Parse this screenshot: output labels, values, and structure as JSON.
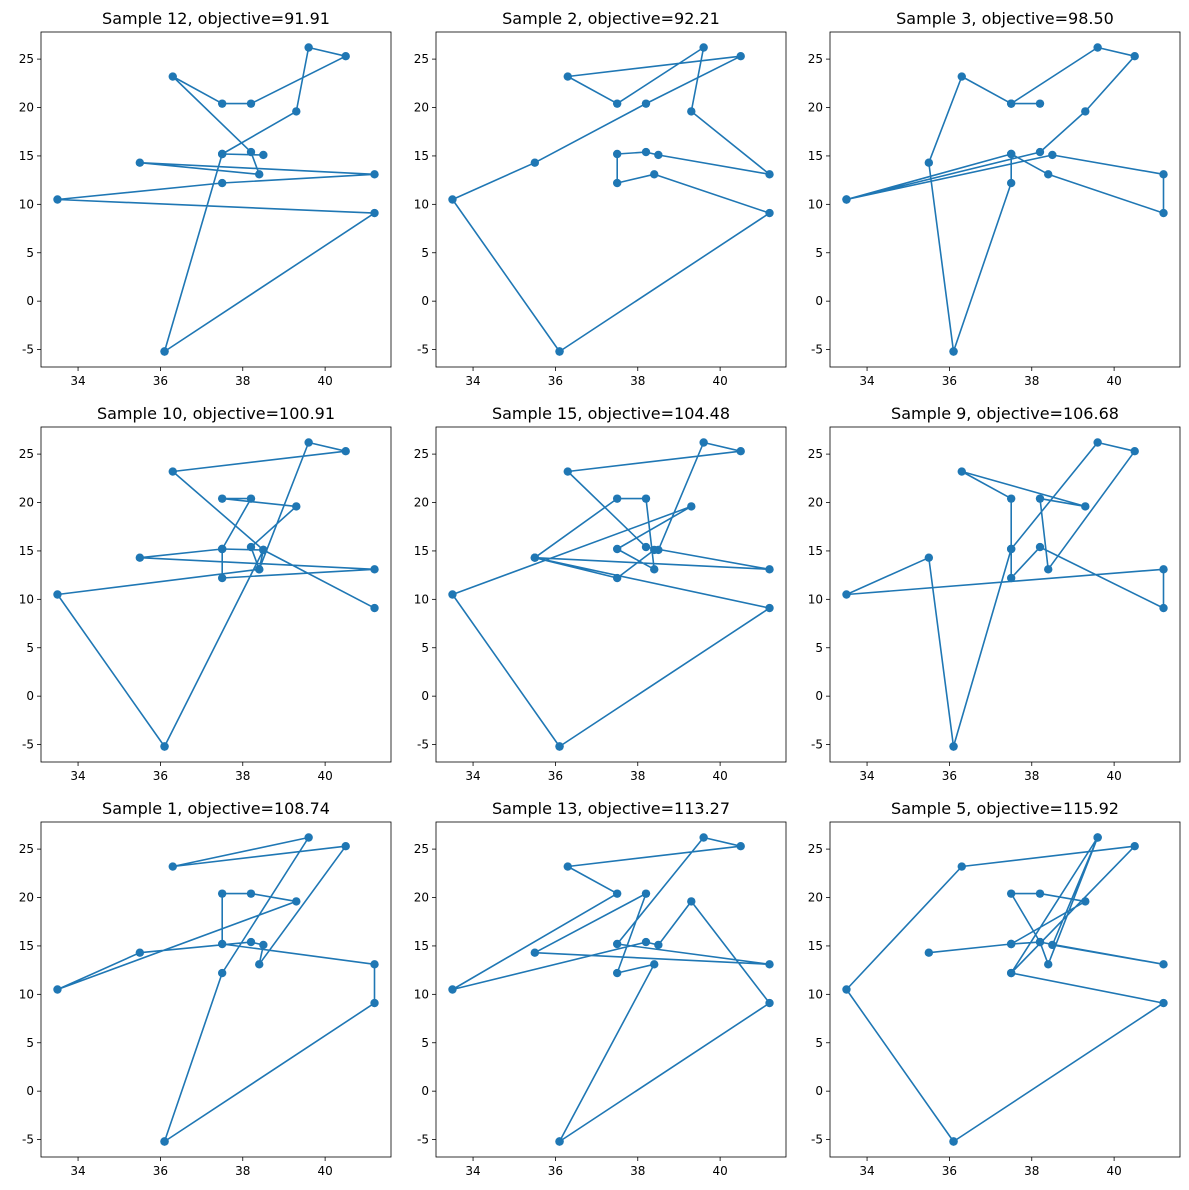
{
  "figure": {
    "rows": 3,
    "cols": 3
  },
  "chart_data": [
    {
      "type": "line",
      "marker": "circle",
      "color": "#1f77b4",
      "title": "Sample 12, objective=91.91",
      "xlim": [
        33.1,
        41.6
      ],
      "ylim": [
        -6.8,
        27.8
      ],
      "xticks": [
        34,
        36,
        38,
        40
      ],
      "yticks": [
        -5,
        0,
        5,
        10,
        15,
        20,
        25
      ],
      "xlabel": "",
      "ylabel": "",
      "x": [
        36.1,
        41.2,
        33.5,
        37.5,
        41.2,
        35.5,
        38.4,
        38.2,
        36.3,
        37.5,
        38.2,
        40.5,
        39.6,
        39.3,
        37.5,
        38.5,
        37.5,
        36.1
      ],
      "y": [
        -5.2,
        9.1,
        10.5,
        12.2,
        13.1,
        14.3,
        13.1,
        15.4,
        23.2,
        20.4,
        20.4,
        25.3,
        26.2,
        19.6,
        15.2,
        15.1,
        15.2,
        -5.2
      ]
    },
    {
      "type": "line",
      "marker": "circle",
      "color": "#1f77b4",
      "title": "Sample 2, objective=92.21",
      "xlim": [
        33.1,
        41.6
      ],
      "ylim": [
        -6.8,
        27.8
      ],
      "xticks": [
        34,
        36,
        38,
        40
      ],
      "yticks": [
        -5,
        0,
        5,
        10,
        15,
        20,
        25
      ],
      "xlabel": "",
      "ylabel": "",
      "x": [
        36.1,
        41.2,
        38.4,
        37.5,
        37.5,
        38.2,
        38.5,
        41.2,
        39.3,
        39.6,
        37.5,
        36.3,
        40.5,
        38.2,
        35.5,
        33.5,
        36.1
      ],
      "y": [
        -5.2,
        9.1,
        13.1,
        12.2,
        15.2,
        15.4,
        15.1,
        13.1,
        19.6,
        26.2,
        20.4,
        23.2,
        25.3,
        20.4,
        14.3,
        10.5,
        -5.2
      ]
    },
    {
      "type": "line",
      "marker": "circle",
      "color": "#1f77b4",
      "title": "Sample 3, objective=98.50",
      "xlim": [
        33.1,
        41.6
      ],
      "ylim": [
        -6.8,
        27.8
      ],
      "xticks": [
        34,
        36,
        38,
        40
      ],
      "yticks": [
        -5,
        0,
        5,
        10,
        15,
        20,
        25
      ],
      "xlabel": "",
      "ylabel": "",
      "x": [
        36.1,
        35.5,
        36.3,
        37.5,
        38.2,
        37.5,
        39.6,
        40.5,
        39.3,
        38.2,
        33.5,
        38.5,
        41.2,
        41.2,
        38.4,
        37.5,
        33.5,
        37.5,
        37.5,
        36.1
      ],
      "y": [
        -5.2,
        14.3,
        23.2,
        20.4,
        20.4,
        20.4,
        26.2,
        25.3,
        19.6,
        15.4,
        10.5,
        15.1,
        13.1,
        9.1,
        13.1,
        15.2,
        10.5,
        15.2,
        12.2,
        -5.2
      ]
    },
    {
      "type": "line",
      "marker": "circle",
      "color": "#1f77b4",
      "title": "Sample 10, objective=100.91",
      "xlim": [
        33.1,
        41.6
      ],
      "ylim": [
        -6.8,
        27.8
      ],
      "xticks": [
        34,
        36,
        38,
        40
      ],
      "yticks": [
        -5,
        0,
        5,
        10,
        15,
        20,
        25
      ],
      "xlabel": "",
      "ylabel": "",
      "x": [
        36.1,
        33.5,
        38.4,
        39.6,
        40.5,
        36.3,
        38.5,
        41.2,
        38.5,
        37.5,
        35.5,
        41.2,
        37.5,
        37.5,
        38.2,
        37.5,
        39.3,
        38.2,
        38.4,
        38.5,
        36.1
      ],
      "y": [
        -5.2,
        10.5,
        13.1,
        26.2,
        25.3,
        23.2,
        15.1,
        9.1,
        15.1,
        15.2,
        14.3,
        13.1,
        12.2,
        15.2,
        20.4,
        20.4,
        19.6,
        15.4,
        13.1,
        15.1,
        -5.2
      ]
    },
    {
      "type": "line",
      "marker": "circle",
      "color": "#1f77b4",
      "title": "Sample 15, objective=104.48",
      "xlim": [
        33.1,
        41.6
      ],
      "ylim": [
        -6.8,
        27.8
      ],
      "xticks": [
        34,
        36,
        38,
        40
      ],
      "yticks": [
        -5,
        0,
        5,
        10,
        15,
        20,
        25
      ],
      "xlabel": "",
      "ylabel": "",
      "x": [
        36.1,
        33.5,
        39.3,
        37.5,
        38.4,
        38.2,
        37.5,
        35.5,
        41.2,
        38.2,
        36.3,
        40.5,
        39.6,
        38.5,
        38.4,
        37.5,
        35.5,
        41.2,
        36.1
      ],
      "y": [
        -5.2,
        10.5,
        19.6,
        15.2,
        13.1,
        20.4,
        20.4,
        14.3,
        13.1,
        15.4,
        23.2,
        25.3,
        26.2,
        15.1,
        15.1,
        12.2,
        14.3,
        9.1,
        -5.2
      ]
    },
    {
      "type": "line",
      "marker": "circle",
      "color": "#1f77b4",
      "title": "Sample 9, objective=106.68",
      "xlim": [
        33.1,
        41.6
      ],
      "ylim": [
        -6.8,
        27.8
      ],
      "xticks": [
        34,
        36,
        38,
        40
      ],
      "yticks": [
        -5,
        0,
        5,
        10,
        15,
        20,
        25
      ],
      "xlabel": "",
      "ylabel": "",
      "x": [
        36.1,
        35.5,
        33.5,
        41.2,
        41.2,
        38.2,
        37.5,
        37.5,
        37.5,
        36.3,
        39.3,
        38.2,
        38.4,
        40.5,
        39.6,
        37.5,
        36.1
      ],
      "y": [
        -5.2,
        14.3,
        10.5,
        13.1,
        9.1,
        15.4,
        12.2,
        15.2,
        20.4,
        23.2,
        19.6,
        20.4,
        13.1,
        25.3,
        26.2,
        15.2,
        -5.2
      ]
    },
    {
      "type": "line",
      "marker": "circle",
      "color": "#1f77b4",
      "title": "Sample 1, objective=108.74",
      "xlim": [
        33.1,
        41.6
      ],
      "ylim": [
        -6.8,
        27.8
      ],
      "xticks": [
        34,
        36,
        38,
        40
      ],
      "yticks": [
        -5,
        0,
        5,
        10,
        15,
        20,
        25
      ],
      "xlabel": "",
      "ylabel": "",
      "x": [
        36.1,
        37.5,
        39.6,
        36.3,
        40.5,
        38.4,
        38.5,
        38.2,
        35.5,
        33.5,
        39.3,
        38.2,
        37.5,
        37.5,
        41.2,
        41.2,
        36.1
      ],
      "y": [
        -5.2,
        12.2,
        26.2,
        23.2,
        25.3,
        13.1,
        15.1,
        15.4,
        14.3,
        10.5,
        19.6,
        20.4,
        20.4,
        15.2,
        13.1,
        9.1,
        -5.2
      ]
    },
    {
      "type": "line",
      "marker": "circle",
      "color": "#1f77b4",
      "title": "Sample 13, objective=113.27",
      "xlim": [
        33.1,
        41.6
      ],
      "ylim": [
        -6.8,
        27.8
      ],
      "xticks": [
        34,
        36,
        38,
        40
      ],
      "yticks": [
        -5,
        0,
        5,
        10,
        15,
        20,
        25
      ],
      "xlabel": "",
      "ylabel": "",
      "x": [
        36.1,
        38.4,
        37.5,
        38.2,
        35.5,
        41.2,
        37.5,
        39.6,
        40.5,
        36.3,
        37.5,
        33.5,
        38.2,
        38.5,
        39.3,
        41.2,
        36.1
      ],
      "y": [
        -5.2,
        13.1,
        12.2,
        20.4,
        14.3,
        13.1,
        15.2,
        26.2,
        25.3,
        23.2,
        20.4,
        10.5,
        15.4,
        15.1,
        19.6,
        9.1,
        -5.2
      ]
    },
    {
      "type": "line",
      "marker": "circle",
      "color": "#1f77b4",
      "title": "Sample 5, objective=115.92",
      "xlim": [
        33.1,
        41.6
      ],
      "ylim": [
        -6.8,
        27.8
      ],
      "xticks": [
        34,
        36,
        38,
        40
      ],
      "yticks": [
        -5,
        0,
        5,
        10,
        15,
        20,
        25
      ],
      "xlabel": "",
      "ylabel": "",
      "x": [
        36.1,
        33.5,
        36.3,
        40.5,
        37.5,
        39.6,
        38.4,
        38.2,
        37.5,
        38.2,
        39.3,
        37.5,
        35.5,
        37.5,
        38.2,
        41.2,
        38.5,
        39.6,
        37.5,
        41.2,
        36.1
      ],
      "y": [
        -5.2,
        10.5,
        23.2,
        25.3,
        12.2,
        26.2,
        13.1,
        15.4,
        20.4,
        20.4,
        19.6,
        15.2,
        14.3,
        15.2,
        15.4,
        13.1,
        15.1,
        26.2,
        12.2,
        9.1,
        -5.2
      ]
    }
  ]
}
